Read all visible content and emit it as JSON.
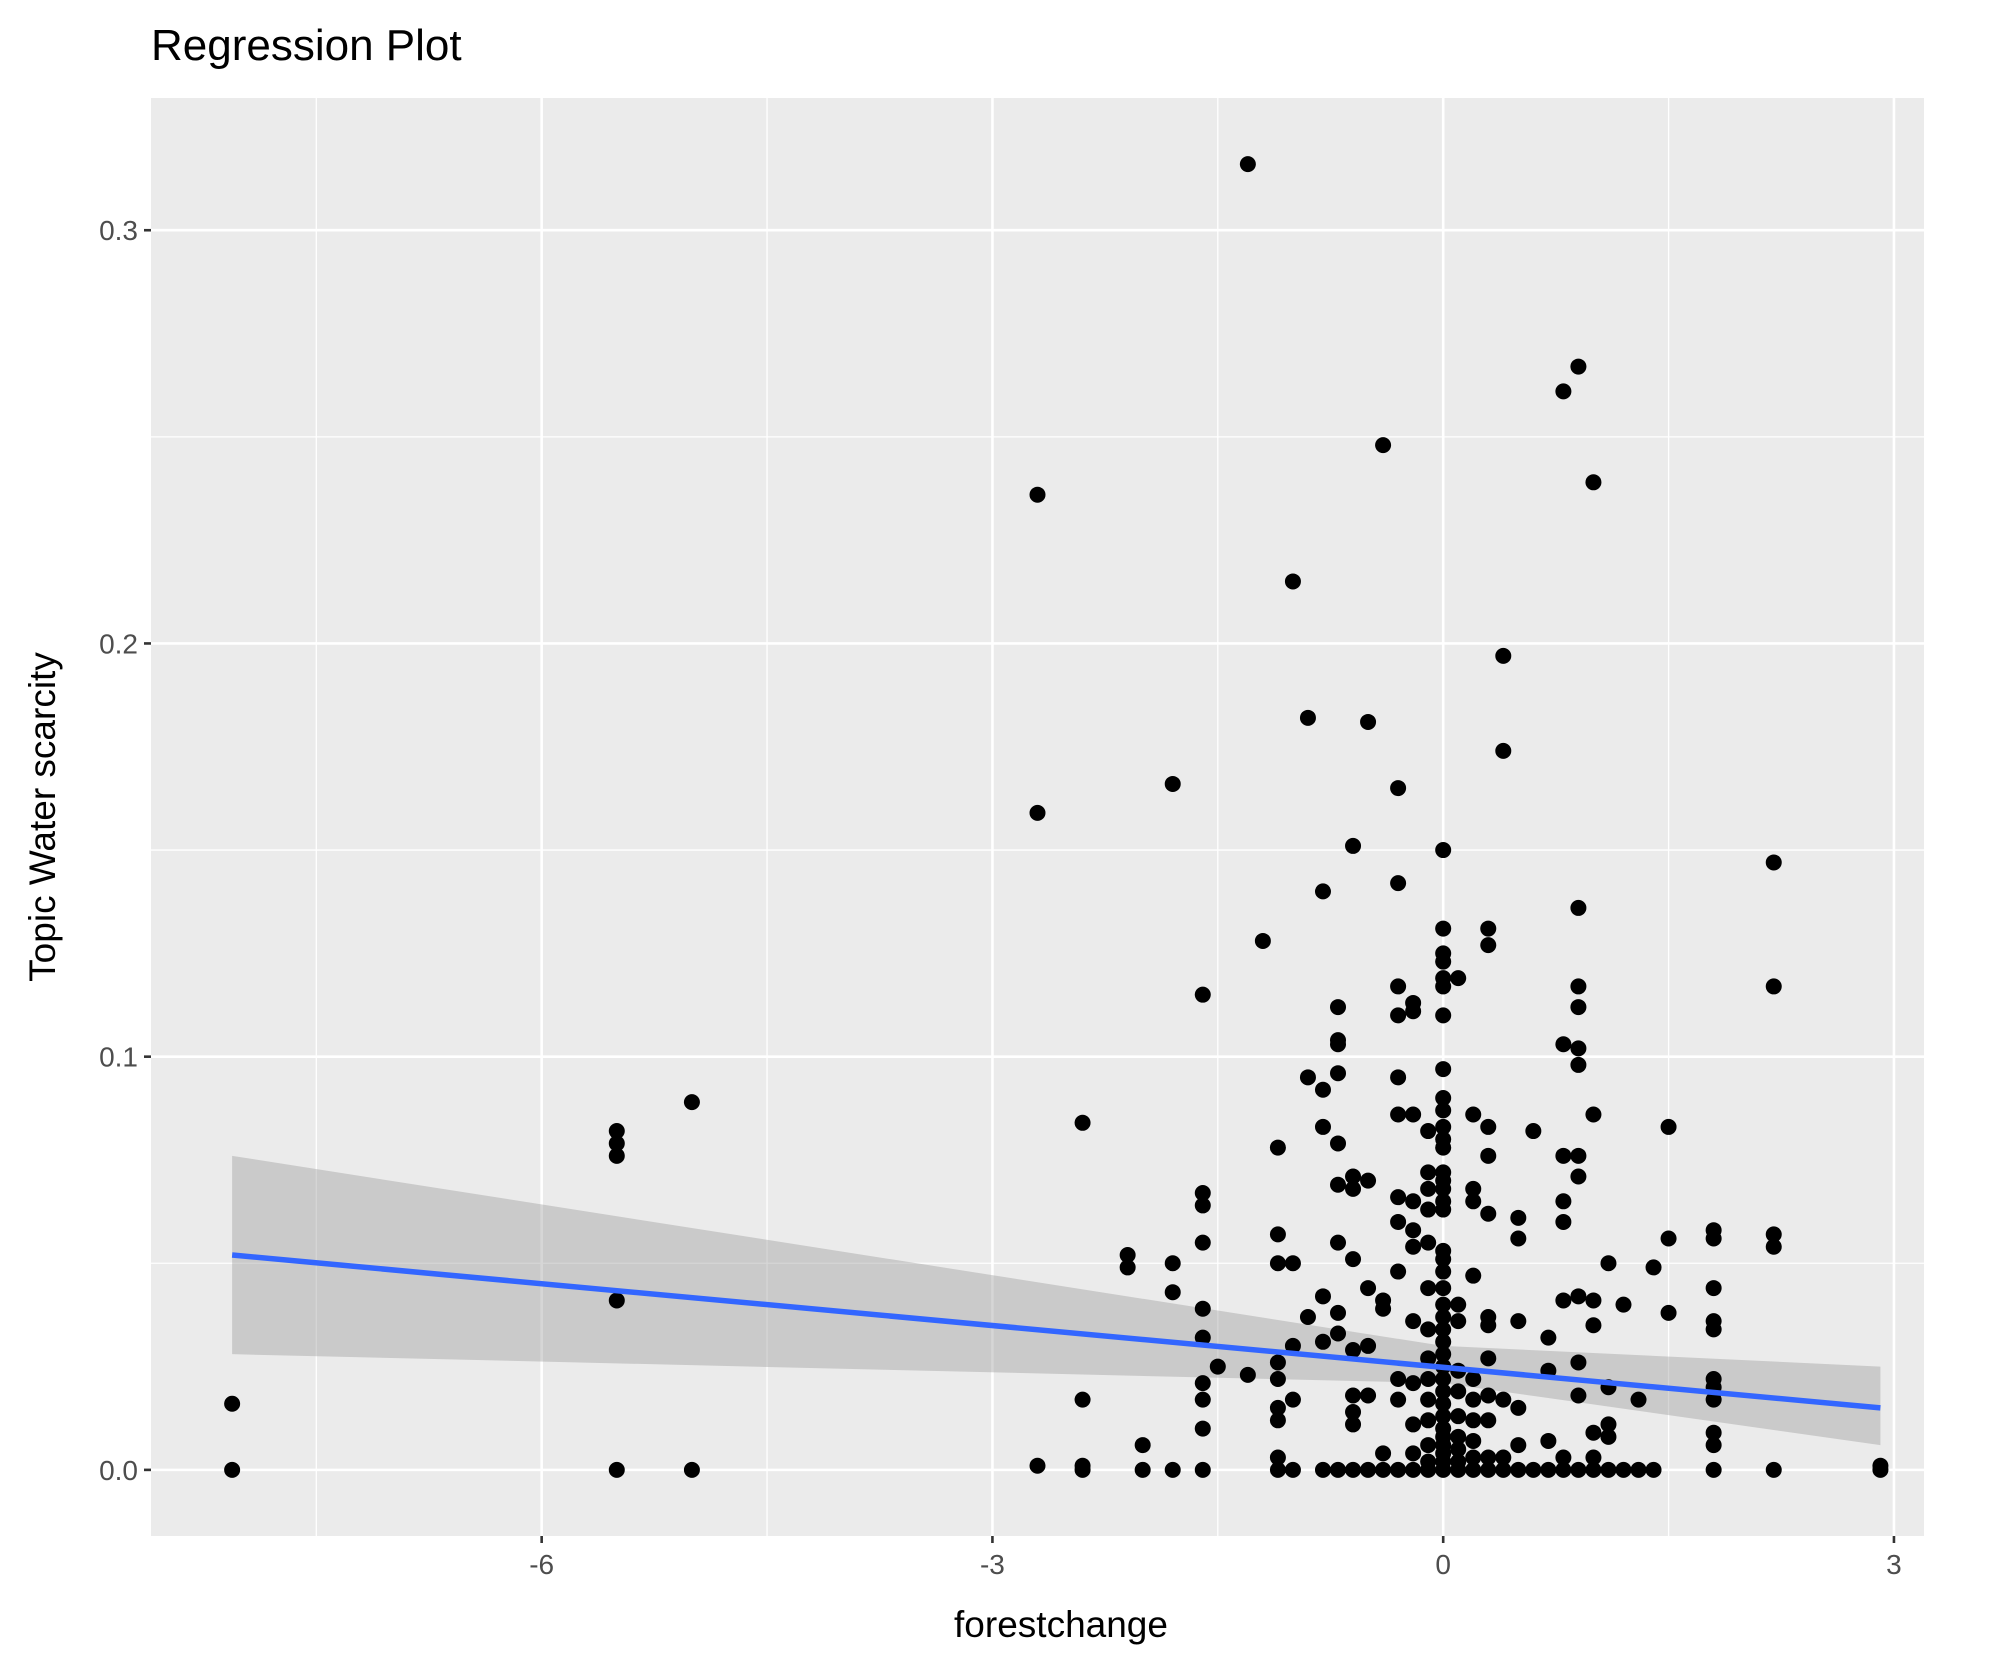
{
  "chart_data": {
    "type": "scatter",
    "title": "Regression Plot",
    "xlabel": "forestchange",
    "ylabel": "Topic Water scarcity",
    "xlim": [
      -8.6,
      3.2
    ],
    "ylim": [
      -0.016,
      0.332
    ],
    "x_ticks": [
      -6,
      -3,
      0,
      3
    ],
    "x_tick_labels": [
      "-6",
      "-3",
      "0",
      "3"
    ],
    "y_ticks": [
      0.0,
      0.1,
      0.2,
      0.3
    ],
    "y_tick_labels": [
      "0.0",
      "0.1",
      "0.2",
      "0.3"
    ],
    "grid": true,
    "colors": {
      "panel_background": "#ebebeb",
      "grid_line": "#ffffff",
      "point": "#000000",
      "regression_line": "#3366ff",
      "confidence_band": "#999999"
    },
    "regression": {
      "x_start": -8.06,
      "y_start": 0.052,
      "x_end": 2.91,
      "y_end": 0.015,
      "band_upper": [
        [
          -8.06,
          0.076
        ],
        [
          0.0,
          0.03
        ],
        [
          2.91,
          0.025
        ]
      ],
      "band_lower": [
        [
          -8.06,
          0.028
        ],
        [
          0.0,
          0.021
        ],
        [
          2.91,
          0.006
        ]
      ]
    },
    "points": [
      [
        -8.06,
        0.0
      ],
      [
        -8.06,
        0.016
      ],
      [
        -5.5,
        0.0
      ],
      [
        -5.5,
        0.041
      ],
      [
        -5.5,
        0.076
      ],
      [
        -5.5,
        0.079
      ],
      [
        -5.5,
        0.082
      ],
      [
        -5.0,
        0.0
      ],
      [
        -5.0,
        0.089
      ],
      [
        -2.7,
        0.001
      ],
      [
        -2.7,
        0.159
      ],
      [
        -2.7,
        0.236
      ],
      [
        -2.4,
        0.0
      ],
      [
        -2.4,
        0.001
      ],
      [
        -2.4,
        0.017
      ],
      [
        -2.4,
        0.084
      ],
      [
        -2.1,
        0.049
      ],
      [
        -2.1,
        0.052
      ],
      [
        -2.0,
        0.0
      ],
      [
        -2.0,
        0.006
      ],
      [
        -1.8,
        0.0
      ],
      [
        -1.8,
        0.043
      ],
      [
        -1.8,
        0.05
      ],
      [
        -1.8,
        0.166
      ],
      [
        -1.6,
        0.0
      ],
      [
        -1.6,
        0.01
      ],
      [
        -1.6,
        0.017
      ],
      [
        -1.6,
        0.021
      ],
      [
        -1.6,
        0.032
      ],
      [
        -1.6,
        0.039
      ],
      [
        -1.6,
        0.055
      ],
      [
        -1.6,
        0.064
      ],
      [
        -1.6,
        0.067
      ],
      [
        -1.6,
        0.115
      ],
      [
        -1.5,
        0.025
      ],
      [
        -1.3,
        0.023
      ],
      [
        -1.3,
        0.316
      ],
      [
        -1.2,
        0.128
      ],
      [
        -1.1,
        0.0
      ],
      [
        -1.1,
        0.003
      ],
      [
        -1.1,
        0.012
      ],
      [
        -1.1,
        0.015
      ],
      [
        -1.1,
        0.022
      ],
      [
        -1.1,
        0.026
      ],
      [
        -1.1,
        0.05
      ],
      [
        -1.1,
        0.057
      ],
      [
        -1.1,
        0.078
      ],
      [
        -1.0,
        0.0
      ],
      [
        -1.0,
        0.017
      ],
      [
        -1.0,
        0.03
      ],
      [
        -1.0,
        0.05
      ],
      [
        -1.0,
        0.215
      ],
      [
        -0.9,
        0.037
      ],
      [
        -0.9,
        0.095
      ],
      [
        -0.9,
        0.182
      ],
      [
        -0.8,
        0.0
      ],
      [
        -0.8,
        0.031
      ],
      [
        -0.8,
        0.042
      ],
      [
        -0.8,
        0.083
      ],
      [
        -0.8,
        0.092
      ],
      [
        -0.8,
        0.14
      ],
      [
        -0.7,
        0.0
      ],
      [
        -0.7,
        0.033
      ],
      [
        -0.7,
        0.038
      ],
      [
        -0.7,
        0.055
      ],
      [
        -0.7,
        0.069
      ],
      [
        -0.7,
        0.079
      ],
      [
        -0.7,
        0.096
      ],
      [
        -0.7,
        0.103
      ],
      [
        -0.7,
        0.104
      ],
      [
        -0.7,
        0.112
      ],
      [
        -0.6,
        0.0
      ],
      [
        -0.6,
        0.011
      ],
      [
        -0.6,
        0.014
      ],
      [
        -0.6,
        0.018
      ],
      [
        -0.6,
        0.029
      ],
      [
        -0.6,
        0.051
      ],
      [
        -0.6,
        0.068
      ],
      [
        -0.6,
        0.071
      ],
      [
        -0.6,
        0.151
      ],
      [
        -0.5,
        0.0
      ],
      [
        -0.5,
        0.018
      ],
      [
        -0.5,
        0.03
      ],
      [
        -0.5,
        0.044
      ],
      [
        -0.5,
        0.07
      ],
      [
        -0.5,
        0.181
      ],
      [
        -0.4,
        0.0
      ],
      [
        -0.4,
        0.004
      ],
      [
        -0.4,
        0.039
      ],
      [
        -0.4,
        0.041
      ],
      [
        -0.4,
        0.248
      ],
      [
        -0.3,
        0.0
      ],
      [
        -0.3,
        0.017
      ],
      [
        -0.3,
        0.022
      ],
      [
        -0.3,
        0.048
      ],
      [
        -0.3,
        0.06
      ],
      [
        -0.3,
        0.066
      ],
      [
        -0.3,
        0.086
      ],
      [
        -0.3,
        0.095
      ],
      [
        -0.3,
        0.11
      ],
      [
        -0.3,
        0.117
      ],
      [
        -0.3,
        0.142
      ],
      [
        -0.3,
        0.165
      ],
      [
        -0.2,
        0.0
      ],
      [
        -0.2,
        0.004
      ],
      [
        -0.2,
        0.011
      ],
      [
        -0.2,
        0.021
      ],
      [
        -0.2,
        0.036
      ],
      [
        -0.2,
        0.054
      ],
      [
        -0.2,
        0.058
      ],
      [
        -0.2,
        0.065
      ],
      [
        -0.2,
        0.086
      ],
      [
        -0.2,
        0.111
      ],
      [
        -0.2,
        0.113
      ],
      [
        -0.1,
        0.0
      ],
      [
        -0.1,
        0.002
      ],
      [
        -0.1,
        0.006
      ],
      [
        -0.1,
        0.012
      ],
      [
        -0.1,
        0.017
      ],
      [
        -0.1,
        0.022
      ],
      [
        -0.1,
        0.027
      ],
      [
        -0.1,
        0.034
      ],
      [
        -0.1,
        0.044
      ],
      [
        -0.1,
        0.055
      ],
      [
        -0.1,
        0.063
      ],
      [
        -0.1,
        0.068
      ],
      [
        -0.1,
        0.072
      ],
      [
        -0.1,
        0.082
      ],
      [
        0.0,
        0.0
      ],
      [
        0.0,
        0.002
      ],
      [
        0.0,
        0.004
      ],
      [
        0.0,
        0.006
      ],
      [
        0.0,
        0.008
      ],
      [
        0.0,
        0.01
      ],
      [
        0.0,
        0.013
      ],
      [
        0.0,
        0.016
      ],
      [
        0.0,
        0.019
      ],
      [
        0.0,
        0.022
      ],
      [
        0.0,
        0.025
      ],
      [
        0.0,
        0.028
      ],
      [
        0.0,
        0.031
      ],
      [
        0.0,
        0.034
      ],
      [
        0.0,
        0.037
      ],
      [
        0.0,
        0.04
      ],
      [
        0.0,
        0.044
      ],
      [
        0.0,
        0.048
      ],
      [
        0.0,
        0.051
      ],
      [
        0.0,
        0.053
      ],
      [
        0.0,
        0.063
      ],
      [
        0.0,
        0.065
      ],
      [
        0.0,
        0.068
      ],
      [
        0.0,
        0.07
      ],
      [
        0.0,
        0.072
      ],
      [
        0.0,
        0.078
      ],
      [
        0.0,
        0.08
      ],
      [
        0.0,
        0.083
      ],
      [
        0.0,
        0.087
      ],
      [
        0.0,
        0.09
      ],
      [
        0.0,
        0.097
      ],
      [
        0.0,
        0.11
      ],
      [
        0.0,
        0.117
      ],
      [
        0.0,
        0.119
      ],
      [
        0.0,
        0.123
      ],
      [
        0.0,
        0.125
      ],
      [
        0.0,
        0.131
      ],
      [
        0.0,
        0.15
      ],
      [
        0.1,
        0.0
      ],
      [
        0.1,
        0.002
      ],
      [
        0.1,
        0.005
      ],
      [
        0.1,
        0.008
      ],
      [
        0.1,
        0.013
      ],
      [
        0.1,
        0.019
      ],
      [
        0.1,
        0.024
      ],
      [
        0.1,
        0.036
      ],
      [
        0.1,
        0.04
      ],
      [
        0.1,
        0.119
      ],
      [
        0.2,
        0.0
      ],
      [
        0.2,
        0.003
      ],
      [
        0.2,
        0.007
      ],
      [
        0.2,
        0.012
      ],
      [
        0.2,
        0.017
      ],
      [
        0.2,
        0.022
      ],
      [
        0.2,
        0.047
      ],
      [
        0.2,
        0.065
      ],
      [
        0.2,
        0.068
      ],
      [
        0.2,
        0.086
      ],
      [
        0.3,
        0.0
      ],
      [
        0.3,
        0.003
      ],
      [
        0.3,
        0.012
      ],
      [
        0.3,
        0.018
      ],
      [
        0.3,
        0.027
      ],
      [
        0.3,
        0.035
      ],
      [
        0.3,
        0.037
      ],
      [
        0.3,
        0.062
      ],
      [
        0.3,
        0.076
      ],
      [
        0.3,
        0.083
      ],
      [
        0.3,
        0.127
      ],
      [
        0.3,
        0.131
      ],
      [
        0.4,
        0.0
      ],
      [
        0.4,
        0.003
      ],
      [
        0.4,
        0.017
      ],
      [
        0.4,
        0.174
      ],
      [
        0.4,
        0.197
      ],
      [
        0.5,
        0.0
      ],
      [
        0.5,
        0.006
      ],
      [
        0.5,
        0.015
      ],
      [
        0.5,
        0.036
      ],
      [
        0.5,
        0.056
      ],
      [
        0.5,
        0.061
      ],
      [
        0.6,
        0.0
      ],
      [
        0.6,
        0.082
      ],
      [
        0.7,
        0.0
      ],
      [
        0.7,
        0.007
      ],
      [
        0.7,
        0.024
      ],
      [
        0.7,
        0.032
      ],
      [
        0.8,
        0.0
      ],
      [
        0.8,
        0.003
      ],
      [
        0.8,
        0.041
      ],
      [
        0.8,
        0.06
      ],
      [
        0.8,
        0.065
      ],
      [
        0.8,
        0.076
      ],
      [
        0.8,
        0.103
      ],
      [
        0.8,
        0.261
      ],
      [
        0.9,
        0.0
      ],
      [
        0.9,
        0.018
      ],
      [
        0.9,
        0.026
      ],
      [
        0.9,
        0.042
      ],
      [
        0.9,
        0.071
      ],
      [
        0.9,
        0.076
      ],
      [
        0.9,
        0.098
      ],
      [
        0.9,
        0.102
      ],
      [
        0.9,
        0.112
      ],
      [
        0.9,
        0.117
      ],
      [
        0.9,
        0.136
      ],
      [
        0.9,
        0.267
      ],
      [
        1.0,
        0.0
      ],
      [
        1.0,
        0.003
      ],
      [
        1.0,
        0.009
      ],
      [
        1.0,
        0.035
      ],
      [
        1.0,
        0.041
      ],
      [
        1.0,
        0.086
      ],
      [
        1.0,
        0.239
      ],
      [
        1.1,
        0.0
      ],
      [
        1.1,
        0.008
      ],
      [
        1.1,
        0.011
      ],
      [
        1.1,
        0.02
      ],
      [
        1.1,
        0.05
      ],
      [
        1.2,
        0.0
      ],
      [
        1.2,
        0.04
      ],
      [
        1.3,
        0.0
      ],
      [
        1.3,
        0.017
      ],
      [
        1.4,
        0.0
      ],
      [
        1.4,
        0.049
      ],
      [
        1.5,
        0.038
      ],
      [
        1.5,
        0.056
      ],
      [
        1.5,
        0.083
      ],
      [
        1.8,
        0.0
      ],
      [
        1.8,
        0.006
      ],
      [
        1.8,
        0.009
      ],
      [
        1.8,
        0.017
      ],
      [
        1.8,
        0.02
      ],
      [
        1.8,
        0.022
      ],
      [
        1.8,
        0.034
      ],
      [
        1.8,
        0.036
      ],
      [
        1.8,
        0.044
      ],
      [
        1.8,
        0.056
      ],
      [
        1.8,
        0.058
      ],
      [
        2.2,
        0.0
      ],
      [
        2.2,
        0.054
      ],
      [
        2.2,
        0.057
      ],
      [
        2.2,
        0.117
      ],
      [
        2.2,
        0.147
      ],
      [
        2.91,
        0.0
      ],
      [
        2.91,
        0.001
      ]
    ]
  }
}
